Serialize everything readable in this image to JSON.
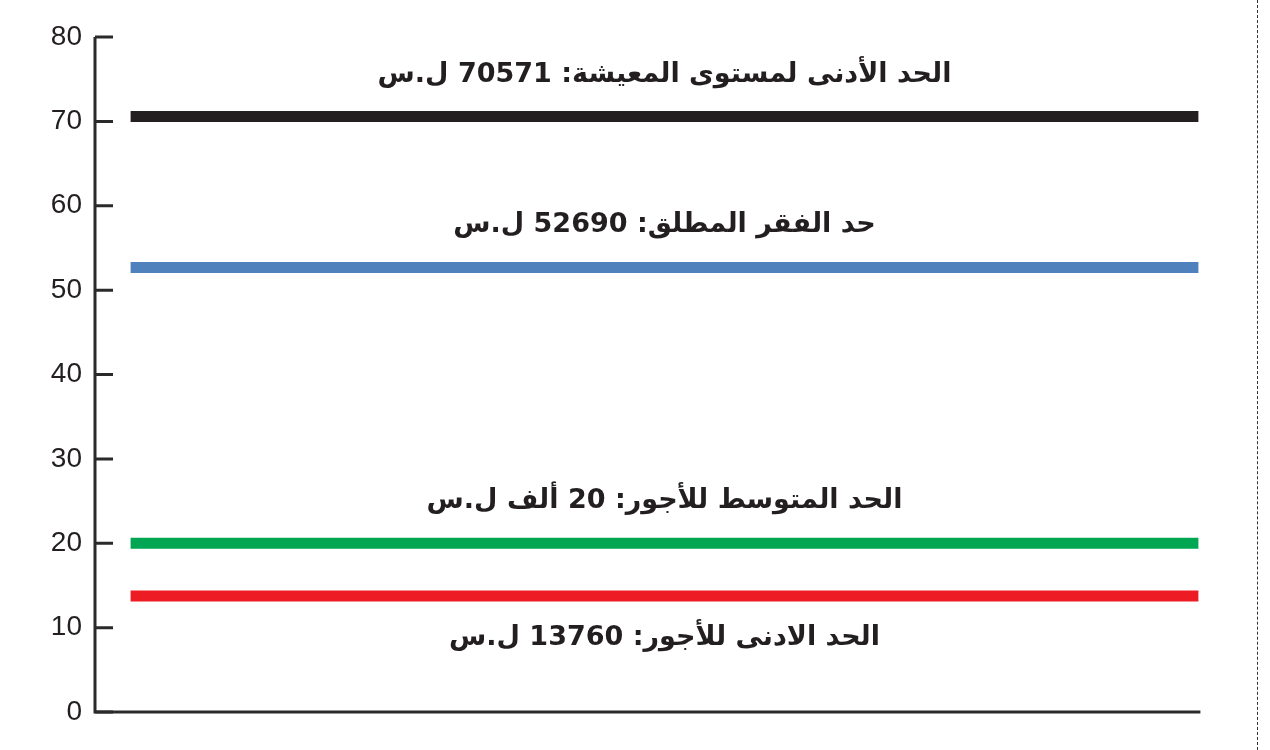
{
  "chart_data": {
    "type": "line",
    "categories": [
      null,
      null,
      null,
      null,
      null,
      null,
      null,
      null,
      null,
      null,
      null,
      null,
      null,
      null,
      null,
      null
    ],
    "series": [
      {
        "name": "الحد الأدنى لمستوى المعيشة: 70571 ل.س",
        "color": "#231f20",
        "values": [
          70.571,
          70.571,
          70.571,
          70.571,
          70.571,
          70.571,
          70.571,
          70.571,
          70.571,
          70.571,
          70.571,
          70.571,
          70.571,
          70.571,
          70.571,
          70.571
        ]
      },
      {
        "name": "حد الفقر المطلق: 52690 ل.س",
        "color": "#4f81bd",
        "values": [
          52.69,
          52.69,
          52.69,
          52.69,
          52.69,
          52.69,
          52.69,
          52.69,
          52.69,
          52.69,
          52.69,
          52.69,
          52.69,
          52.69,
          52.69,
          52.69
        ]
      },
      {
        "name": "الحد المتوسط للأجور: 20 ألف ل.س",
        "color": "#00a651",
        "values": [
          20,
          20,
          20,
          20,
          20,
          20,
          20,
          20,
          20,
          20,
          20,
          20,
          20,
          20,
          20,
          20
        ]
      },
      {
        "name": "الحد الادنى للأجور: 13760 ل.س",
        "color": "#ed1c24",
        "values": [
          13.76,
          13.76,
          13.76,
          13.76,
          13.76,
          13.76,
          13.76,
          13.76,
          13.76,
          13.76,
          13.76,
          13.76,
          13.76,
          13.76,
          13.76,
          13.76
        ]
      }
    ],
    "ylim": [
      0,
      80
    ],
    "yticks": [
      0,
      10,
      20,
      30,
      40,
      50,
      60,
      70,
      80
    ],
    "tick_labels": "y",
    "marker": "none"
  }
}
